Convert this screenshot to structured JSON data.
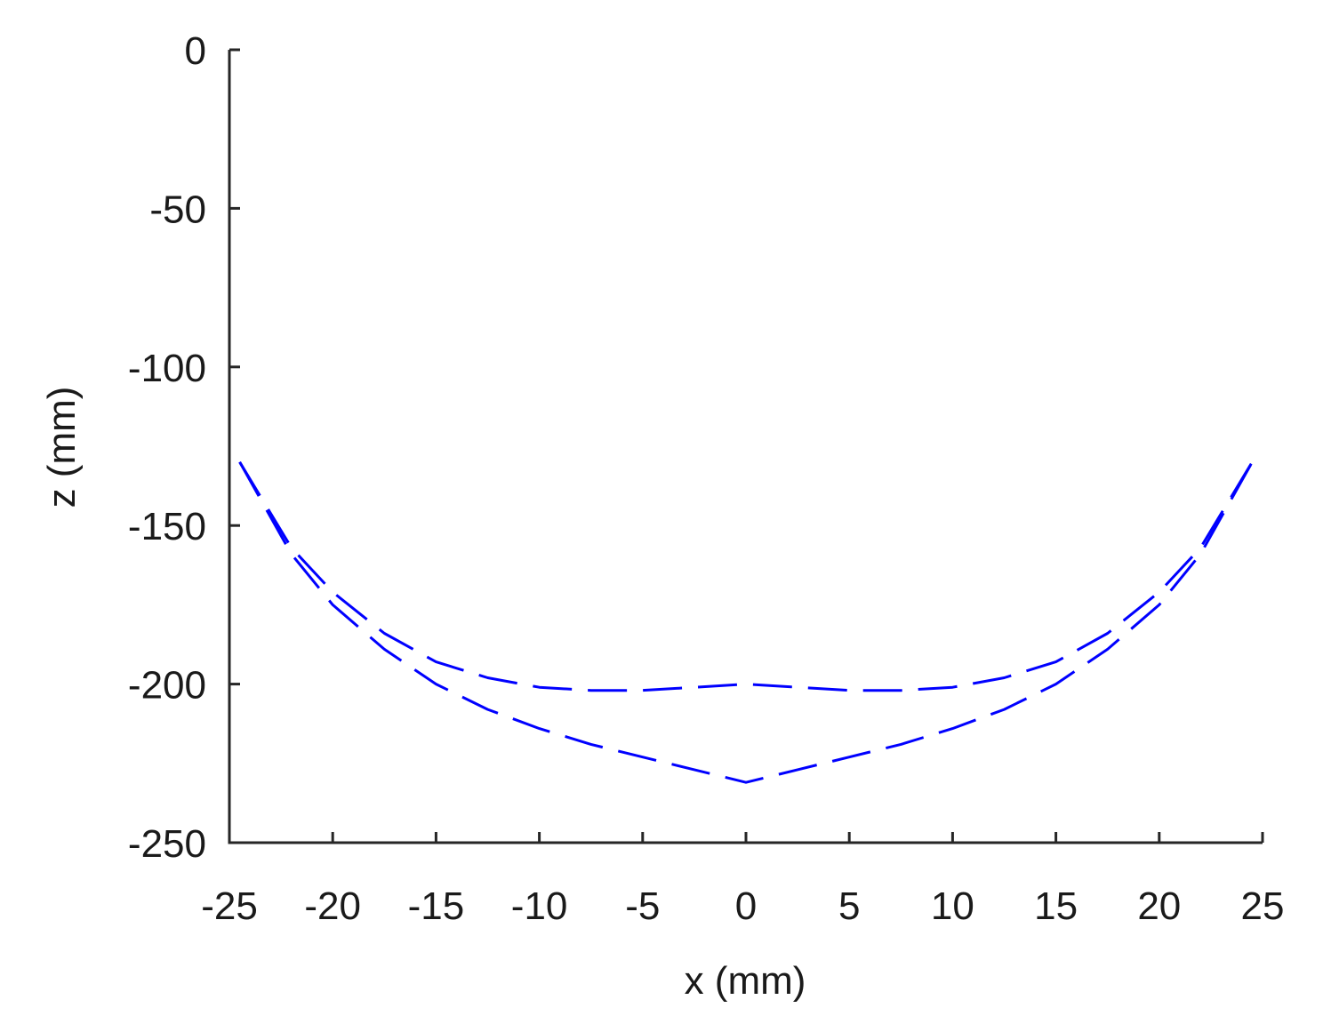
{
  "chart_data": {
    "type": "line",
    "title": "",
    "xlabel": "x (mm)",
    "ylabel": "z (mm)",
    "xlim": [
      -25,
      25
    ],
    "ylim": [
      -250,
      0
    ],
    "xticks": [
      -25,
      -20,
      -15,
      -10,
      -5,
      0,
      5,
      10,
      15,
      20,
      25
    ],
    "yticks": [
      0,
      -50,
      -100,
      -150,
      -200,
      -250
    ],
    "xtick_labels": [
      "-25",
      "-20",
      "-15",
      "-10",
      "-5",
      "0",
      "5",
      "10",
      "15",
      "20",
      "25"
    ],
    "ytick_labels": [
      "0",
      "-50",
      "-100",
      "-150",
      "-200",
      "-250"
    ],
    "grid": false,
    "line_style": "dashed",
    "series_color": "#0000ff",
    "series": [
      {
        "x": [
          -24.5,
          -22,
          -20,
          -17.5,
          -15,
          -12.5,
          -10,
          -7.5,
          -5,
          -2.5,
          0,
          2.5,
          5,
          7.5,
          10,
          12.5,
          15,
          17.5,
          20,
          22,
          24.5
        ],
        "y": [
          -130,
          -157,
          -171,
          -184,
          -193,
          -198,
          -201,
          -202,
          -202,
          -201,
          -200,
          -201,
          -202,
          -202,
          -201,
          -198,
          -193,
          -184,
          -171,
          -157,
          -130
        ]
      },
      {
        "x": [
          -24.5,
          -22,
          -20,
          -17.5,
          -15,
          -12.5,
          -10,
          -7.5,
          -5,
          -2.5,
          0,
          2.5,
          5,
          7.5,
          10,
          12.5,
          15,
          17.5,
          20,
          22,
          24.5
        ],
        "y": [
          -130,
          -159,
          -175,
          -189,
          -200,
          -208,
          -214,
          -219,
          -223,
          -227,
          -231,
          -227,
          -223,
          -219,
          -214,
          -208,
          -200,
          -189,
          -175,
          -159,
          -130
        ]
      }
    ]
  }
}
